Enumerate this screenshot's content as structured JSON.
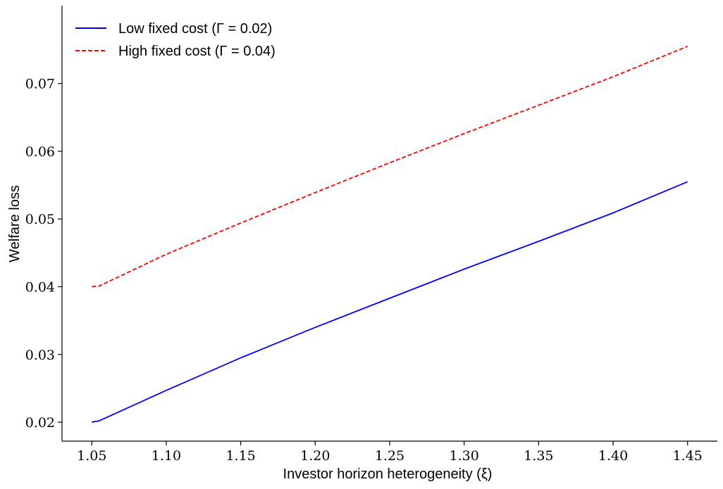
{
  "chart_data": {
    "type": "line",
    "title": "",
    "xlabel": "Investor horizon heterogeneity (ξ)",
    "ylabel": "Welfare loss",
    "xlim": [
      1.03,
      1.47
    ],
    "ylim": [
      0.0172,
      0.0815
    ],
    "xticks": [
      1.05,
      1.1,
      1.15,
      1.2,
      1.25,
      1.3,
      1.35,
      1.4,
      1.45
    ],
    "xtick_labels": [
      "1.05",
      "1.10",
      "1.15",
      "1.20",
      "1.25",
      "1.30",
      "1.35",
      "1.40",
      "1.45"
    ],
    "yticks": [
      0.02,
      0.03,
      0.04,
      0.05,
      0.06,
      0.07
    ],
    "ytick_labels": [
      "0.02",
      "0.03",
      "0.04",
      "0.05",
      "0.06",
      "0.07"
    ],
    "grid": false,
    "legend_position": "top-left",
    "series": [
      {
        "name": "Low fixed cost (Γ = 0.02)",
        "color": "#0000ff",
        "style": "solid",
        "x": [
          1.05,
          1.055,
          1.1,
          1.15,
          1.2,
          1.25,
          1.3,
          1.35,
          1.4,
          1.45
        ],
        "y": [
          0.02,
          0.0202,
          0.0247,
          0.0295,
          0.034,
          0.0383,
          0.0426,
          0.0467,
          0.0509,
          0.0555
        ]
      },
      {
        "name": "High fixed cost (Γ = 0.04)",
        "color": "#ff0000",
        "style": "dashed",
        "x": [
          1.05,
          1.055,
          1.1,
          1.15,
          1.2,
          1.25,
          1.3,
          1.35,
          1.4,
          1.45
        ],
        "y": [
          0.04,
          0.0401,
          0.0448,
          0.0494,
          0.0539,
          0.0583,
          0.0626,
          0.0668,
          0.071,
          0.0755
        ]
      }
    ]
  }
}
